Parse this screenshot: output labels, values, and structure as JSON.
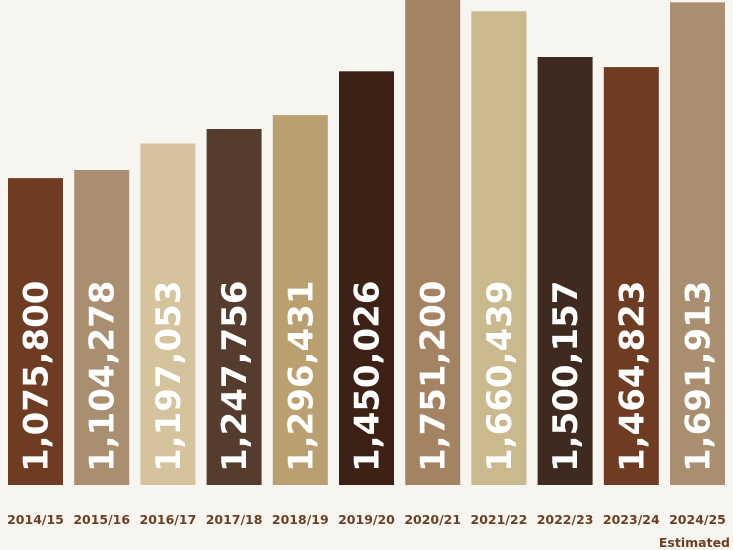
{
  "chart_data": {
    "type": "bar",
    "categories": [
      "2014/15",
      "2015/16",
      "2016/17",
      "2017/18",
      "2018/19",
      "2019/20",
      "2020/21",
      "2021/22",
      "2022/23",
      "2023/24",
      "2024/25"
    ],
    "values": [
      1075800,
      1104278,
      1197053,
      1247756,
      1296431,
      1450026,
      1751200,
      1660439,
      1500157,
      1464823,
      1691913
    ],
    "value_labels": [
      "1,075,800",
      "1,104,278",
      "1,197,053",
      "1,247,756",
      "1,296,431",
      "1,450,026",
      "1,751,200",
      "1,660,439",
      "1,500,157",
      "1,464,823",
      "1,691,913"
    ],
    "bar_colors": [
      "#6e3c22",
      "#aa8e70",
      "#d4c39c",
      "#563c2e",
      "#baa071",
      "#3d2114",
      "#a48363",
      "#c9b98d",
      "#3f2a20",
      "#6e3c22",
      "#aa8e70"
    ],
    "annotations": [
      {
        "category": "2024/25",
        "text": "Estimated"
      }
    ],
    "ylim": [
      0,
      1700000
    ],
    "grid": false,
    "legend": "none"
  },
  "colors": {
    "background": "#f7f5f0",
    "label_text": "#6b3f22",
    "value_text": "#ffffff"
  }
}
